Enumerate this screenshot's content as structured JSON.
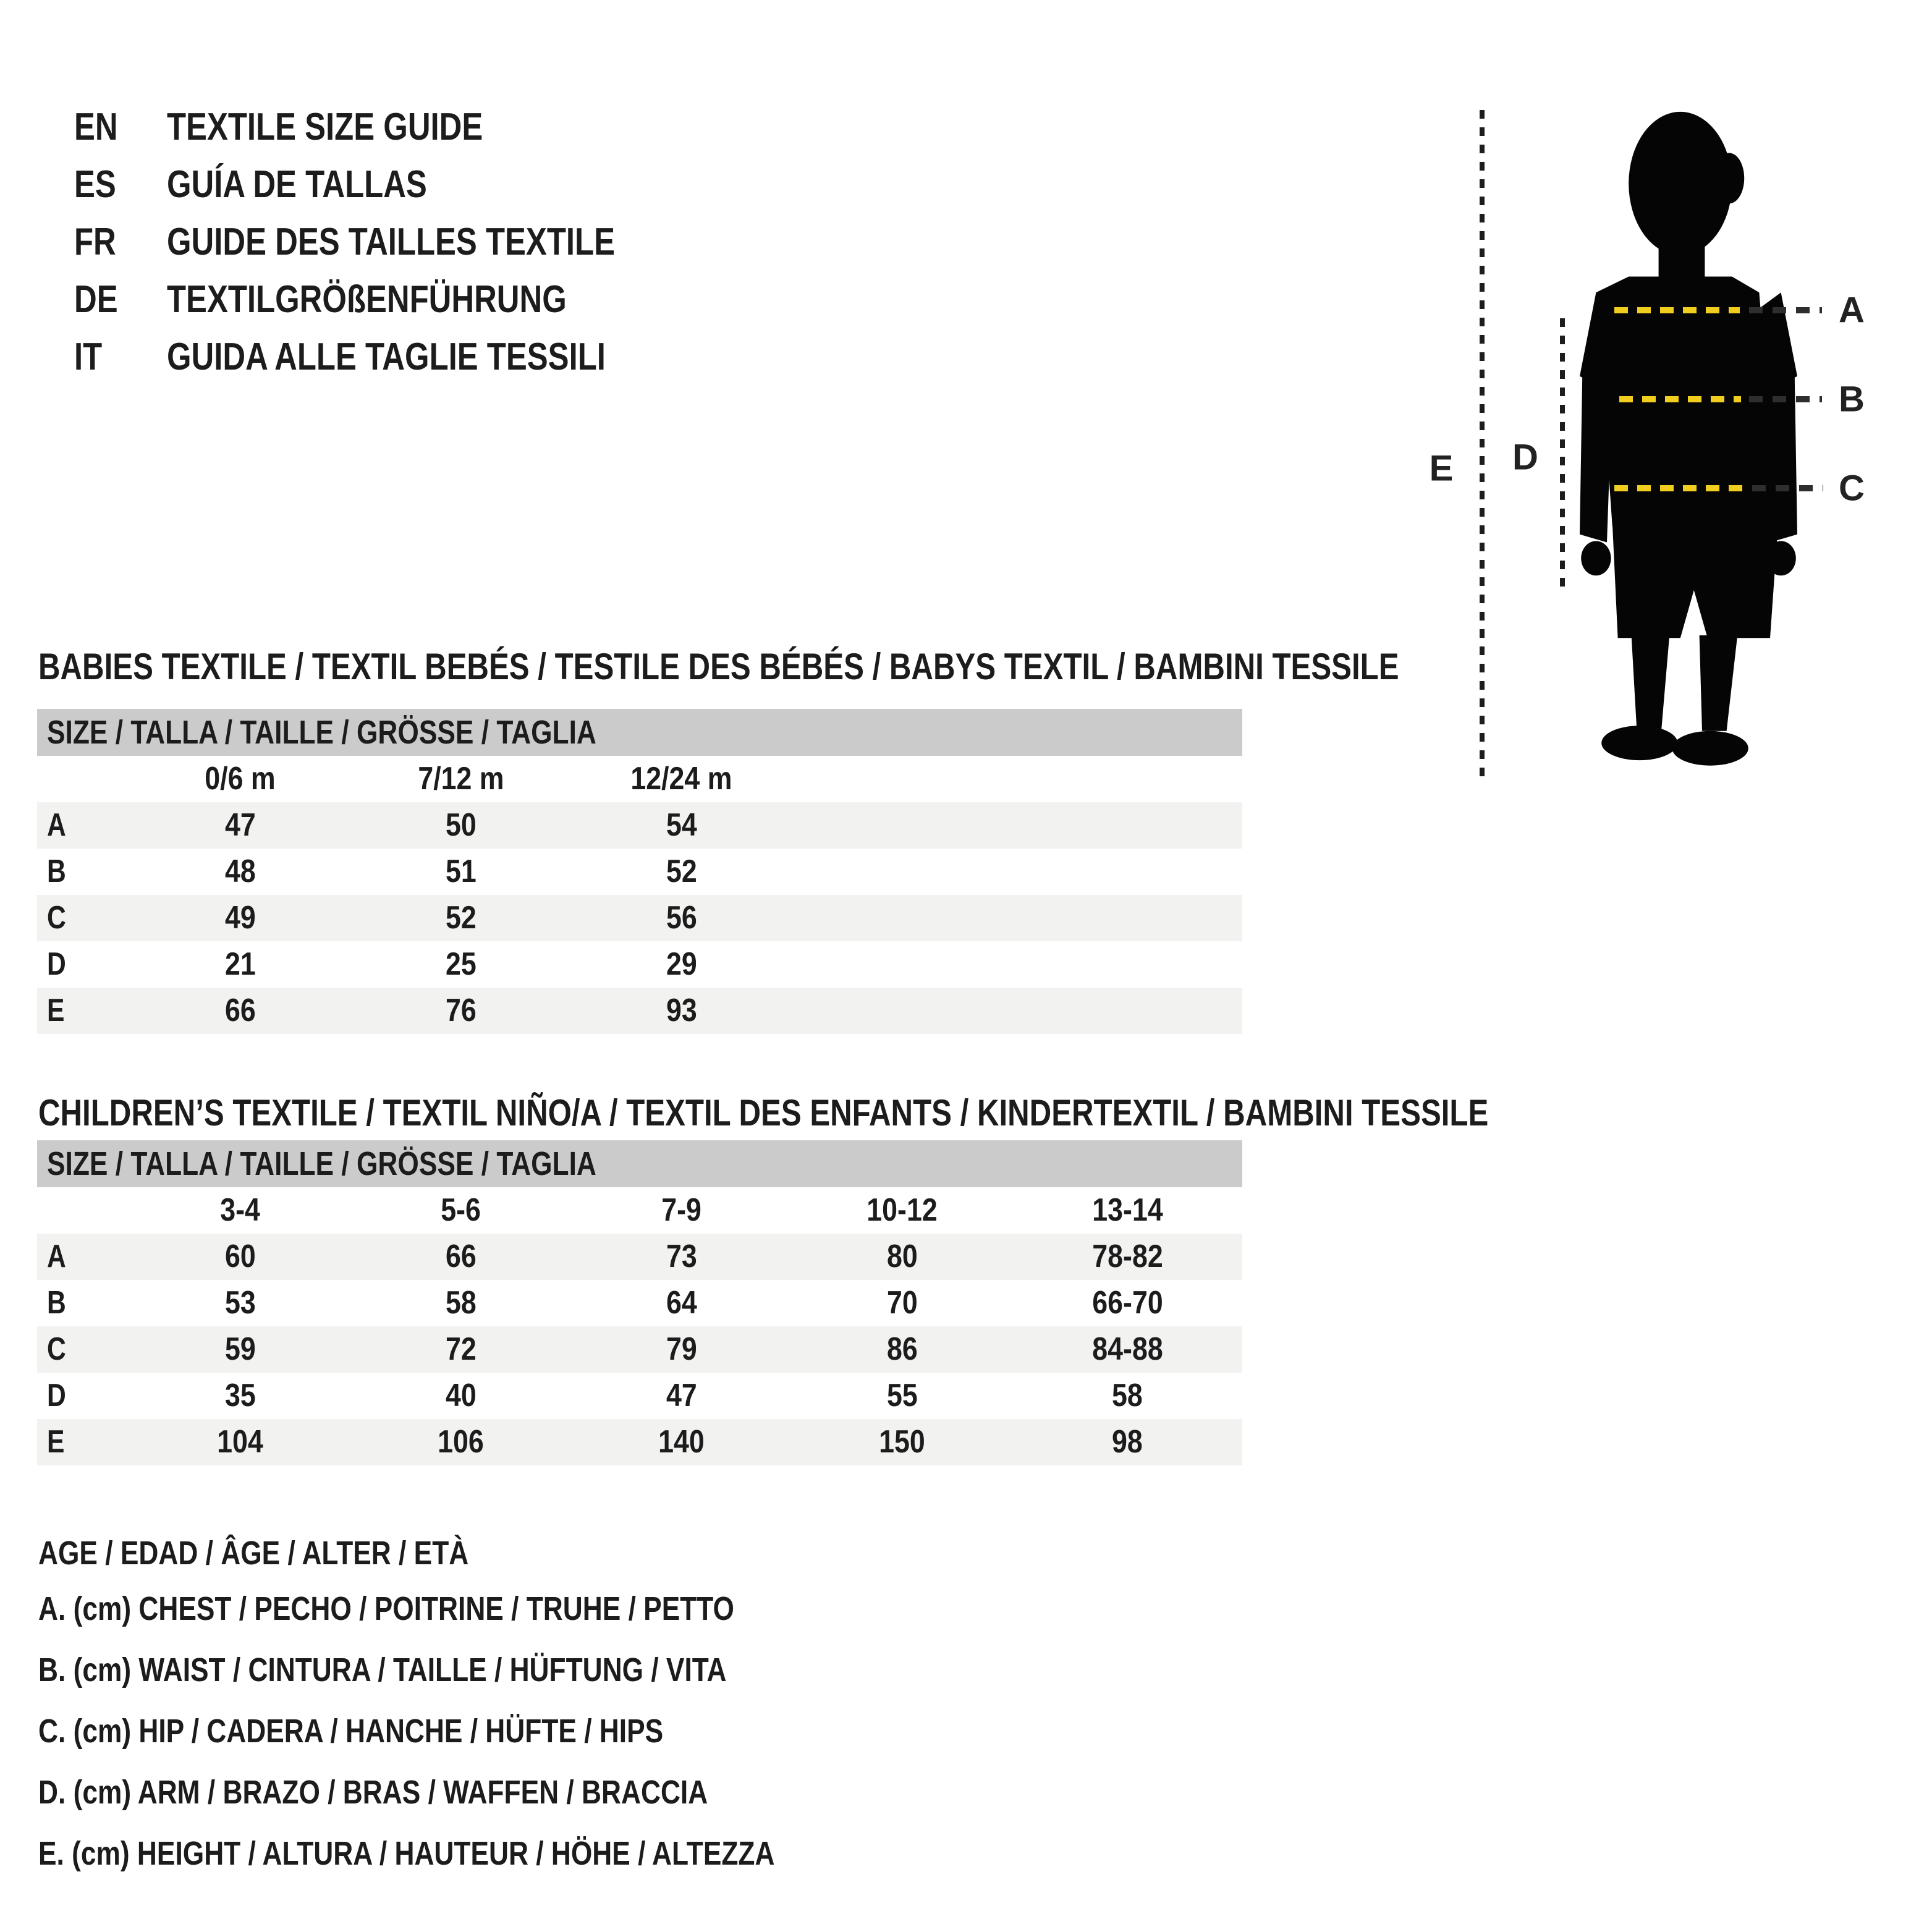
{
  "page": {
    "background": "#ffffff",
    "text_color": "#1c1c1c"
  },
  "title": {
    "languages": [
      {
        "code": "EN",
        "label": "TEXTILE SIZE GUIDE"
      },
      {
        "code": "ES",
        "label": "GUÍA DE TALLAS"
      },
      {
        "code": "FR",
        "label": "GUIDE DES TAILLES TEXTILE"
      },
      {
        "code": "DE",
        "label": "TEXTILGRÖßENFÜHRUNG"
      },
      {
        "code": "IT",
        "label": "GUIDA ALLE TAGLIE TESSILI"
      }
    ]
  },
  "figure": {
    "measure_labels": {
      "a": "A",
      "b": "B",
      "c": "C"
    },
    "side_labels": {
      "d": "D",
      "e": "E"
    },
    "colors": {
      "silhouette": "#050505",
      "dash_yellow": "#f0cd1e",
      "dash_dark": "#2e2e2e"
    }
  },
  "babies_table": {
    "heading": "BABIES TEXTILE / TEXTIL BEBÉS / TESTILE DES BÉBÉS / BABYS TEXTIL / BAMBINI TESSILE",
    "size_header": "SIZE / TALLA / TAILLE / GRÖSSE / TAGLIA",
    "columns": [
      "0/6 m",
      "7/12 m",
      "12/24 m"
    ],
    "rows": [
      {
        "label": "A",
        "values": [
          "47",
          "50",
          "54"
        ]
      },
      {
        "label": "B",
        "values": [
          "48",
          "51",
          "52"
        ]
      },
      {
        "label": "C",
        "values": [
          "49",
          "52",
          "56"
        ]
      },
      {
        "label": "D",
        "values": [
          "21",
          "25",
          "29"
        ]
      },
      {
        "label": "E",
        "values": [
          "66",
          "76",
          "93"
        ]
      }
    ]
  },
  "children_table": {
    "heading": "CHILDREN’S TEXTILE / TEXTIL NIÑO/A / TEXTIL DES ENFANTS / KINDERTEXTIL / BAMBINI TESSILE",
    "size_header": "SIZE / TALLA / TAILLE / GRÖSSE / TAGLIA",
    "columns": [
      "3-4",
      "5-6",
      "7-9",
      "10-12",
      "13-14"
    ],
    "rows": [
      {
        "label": "A",
        "values": [
          "60",
          "66",
          "73",
          "80",
          "78-82"
        ]
      },
      {
        "label": "B",
        "values": [
          "53",
          "58",
          "64",
          "70",
          "66-70"
        ]
      },
      {
        "label": "C",
        "values": [
          "59",
          "72",
          "79",
          "86",
          "84-88"
        ]
      },
      {
        "label": "D",
        "values": [
          "35",
          "40",
          "47",
          "55",
          "58"
        ]
      },
      {
        "label": "E",
        "values": [
          "104",
          "106",
          "140",
          "150",
          "98"
        ]
      }
    ]
  },
  "legend": {
    "lines": [
      "AGE / EDAD / ÂGE / ALTER / ETÀ",
      "A. (cm) CHEST / PECHO / POITRINE / TRUHE / PETTO",
      "B. (cm) WAIST / CINTURA / TAILLE / HÜFTUNG / VITA",
      "C. (cm) HIP / CADERA / HANCHE / HÜFTE / HIPS",
      "D. (cm) ARM / BRAZO / BRAS / WAFFEN / BRACCIA",
      "E. (cm) HEIGHT / ALTURA / HAUTEUR / HÖHE / ALTEZZA"
    ]
  },
  "table_colors": {
    "header_bar": "#cbcbcb",
    "stripe": "#f2f2f1"
  }
}
